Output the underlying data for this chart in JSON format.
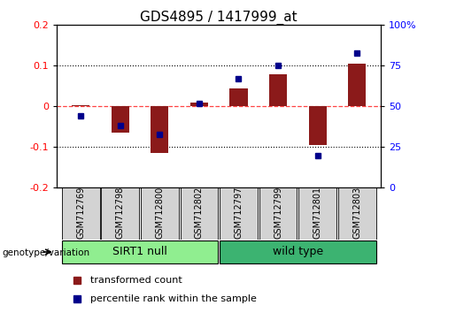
{
  "title": "GDS4895 / 1417999_at",
  "samples": [
    "GSM712769",
    "GSM712798",
    "GSM712800",
    "GSM712802",
    "GSM712797",
    "GSM712799",
    "GSM712801",
    "GSM712803"
  ],
  "red_bars": [
    0.002,
    -0.065,
    -0.115,
    0.01,
    0.045,
    0.08,
    -0.095,
    0.105
  ],
  "blue_dots": [
    44,
    38,
    33,
    52,
    67,
    75,
    20,
    83
  ],
  "ylim_left": [
    -0.2,
    0.2
  ],
  "ylim_right": [
    0,
    100
  ],
  "yticks_left": [
    -0.2,
    -0.1,
    0.0,
    0.1,
    0.2
  ],
  "yticks_right": [
    0,
    25,
    50,
    75,
    100
  ],
  "groups": [
    {
      "label": "SIRT1 null",
      "start": 0,
      "end": 4,
      "color": "#90ee90"
    },
    {
      "label": "wild type",
      "start": 4,
      "end": 8,
      "color": "#3cb371"
    }
  ],
  "group_label": "genotype/variation",
  "legend_red": "transformed count",
  "legend_blue": "percentile rank within the sample",
  "bar_color": "#8b1a1a",
  "dot_color": "#00008b",
  "zero_line_color": "#ff4444",
  "grid_color": "#000000",
  "bg_color": "#ffffff",
  "plot_bg": "#ffffff",
  "bar_width": 0.45,
  "title_fontsize": 11,
  "tick_fontsize": 8,
  "label_fontsize": 8,
  "sample_label_fontsize": 7,
  "group_fontsize": 9
}
